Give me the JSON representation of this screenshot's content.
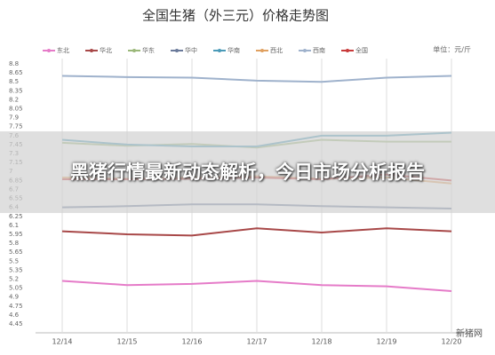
{
  "chart_data": {
    "type": "line",
    "title": "全国生猪（外三元）价格走势图",
    "unit": "单位：元/斤",
    "categories": [
      "12/14",
      "12/15",
      "12/16",
      "12/17",
      "12/18",
      "12/19",
      "12/20"
    ],
    "series": [
      {
        "name": "东北",
        "color": "#e57bc8",
        "values": [
          5.17,
          5.1,
          5.12,
          5.17,
          5.1,
          5.08,
          5.0
        ]
      },
      {
        "name": "华北",
        "color": "#a84848",
        "values": [
          6.0,
          5.95,
          5.93,
          6.05,
          5.98,
          6.05,
          6.0
        ]
      },
      {
        "name": "华东",
        "color": "#9bb87a",
        "values": [
          7.48,
          7.43,
          7.46,
          7.4,
          7.53,
          7.5,
          7.5
        ]
      },
      {
        "name": "华中",
        "color": "#6a7a9a",
        "values": [
          6.4,
          6.42,
          6.45,
          6.45,
          6.42,
          6.4,
          6.38
        ]
      },
      {
        "name": "华南",
        "color": "#4a9ab8",
        "values": [
          7.53,
          7.45,
          7.42,
          7.42,
          7.6,
          7.6,
          7.65
        ]
      },
      {
        "name": "西北",
        "color": "#e0a060",
        "values": [
          6.9,
          6.88,
          6.9,
          6.92,
          6.88,
          6.9,
          6.8
        ]
      },
      {
        "name": "西南",
        "color": "#9fb2cc",
        "values": [
          8.6,
          8.58,
          8.57,
          8.52,
          8.5,
          8.57,
          8.6
        ]
      },
      {
        "name": "全国",
        "color": "#c83a3a",
        "values": [
          6.87,
          6.87,
          6.88,
          6.9,
          6.87,
          6.95,
          6.85
        ]
      }
    ],
    "ylim": [
      4.45,
      8.8
    ],
    "yticks": [
      4.45,
      4.6,
      4.75,
      4.9,
      5.05,
      5.2,
      5.35,
      5.5,
      5.65,
      5.8,
      5.95,
      6.1,
      6.25,
      6.4,
      6.55,
      6.7,
      6.85,
      7,
      7.15,
      7.3,
      7.45,
      7.6,
      7.75,
      7.9,
      8.05,
      8.2,
      8.35,
      8.5,
      8.65,
      8.8
    ],
    "grid": "vertical"
  },
  "banner": "黑猪行情最新动态解析，今日市场分析报告",
  "watermark": "新猪网"
}
